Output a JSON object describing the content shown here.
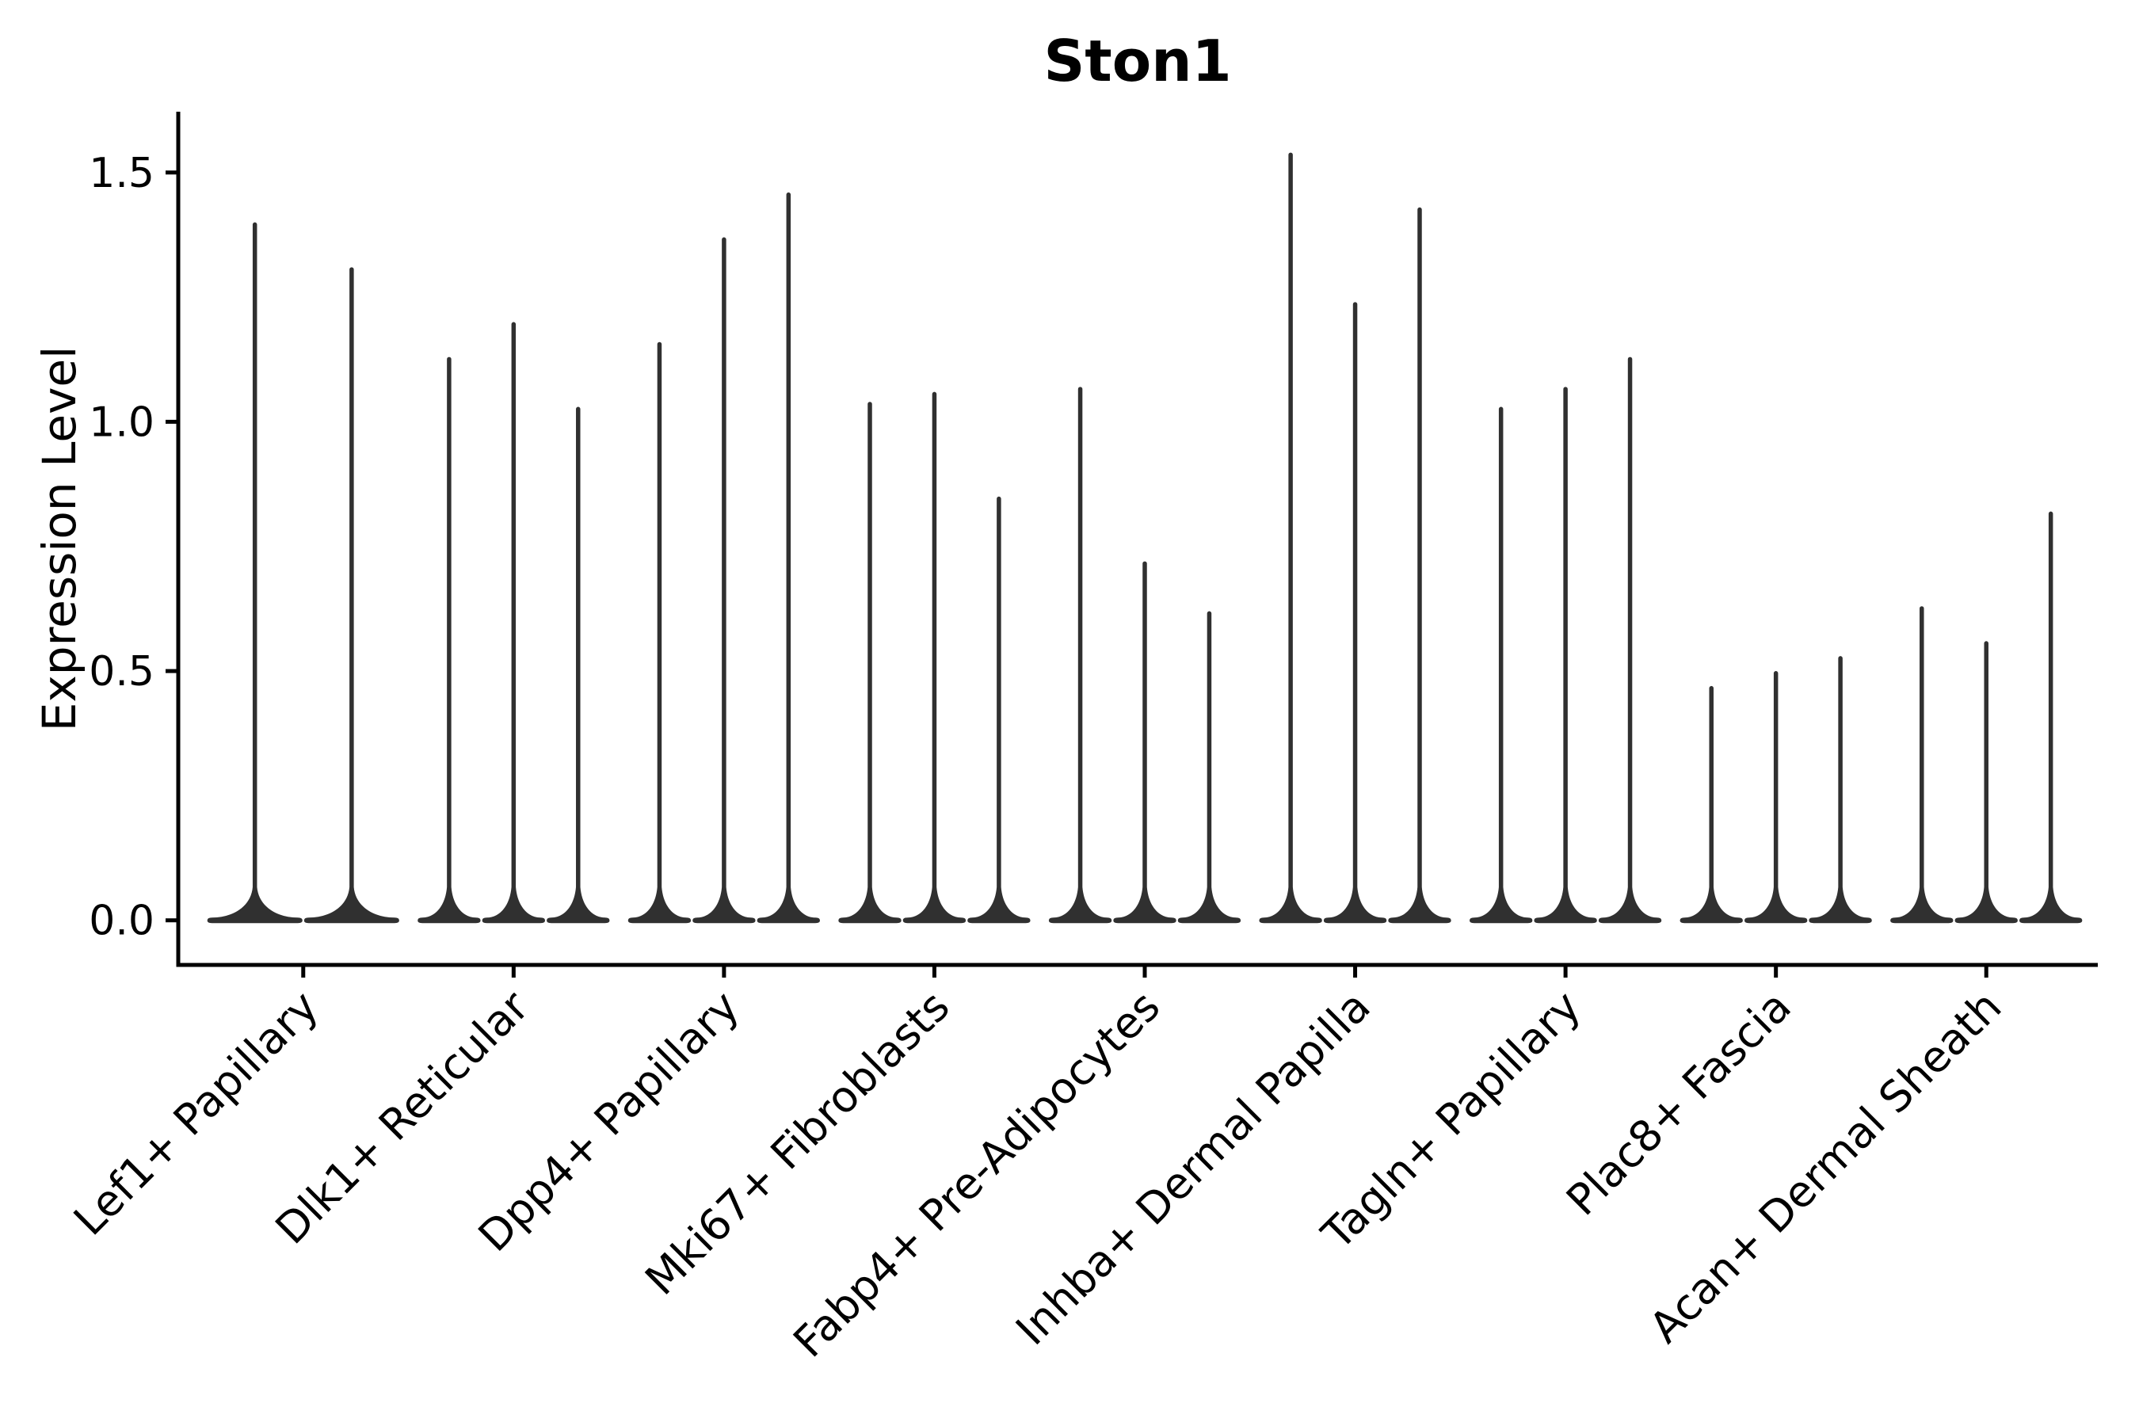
{
  "title": "Ston1",
  "axes": {
    "ylabel": "Expression Level",
    "xlabel": "",
    "ytick_labels": [
      "0.0",
      "0.5",
      "1.0",
      "1.5"
    ]
  },
  "colors": {
    "violin": "#303030",
    "axis": "#000000",
    "text": "#000000",
    "background": "#ffffff"
  },
  "chart_data": {
    "type": "violin",
    "title": "Ston1",
    "ylabel": "Expression Level",
    "xlabel": "",
    "ylim": [
      -0.09,
      1.62
    ],
    "yticks": [
      0.0,
      0.5,
      1.0,
      1.5
    ],
    "grid": false,
    "legend": null,
    "baseline_value": 0.0,
    "shape_note": "needle violins: wide flat base at expression 0, thin spike up to max value",
    "categories": [
      "Lef1+ Papillary",
      "Dlk1+ Reticular",
      "Dpp4+ Papillary",
      "Mki67+ Fibroblasts",
      "Fabp4+ Pre-Adipocytes",
      "Inhba+ Dermal Papilla",
      "Tagln+ Papillary",
      "Plac8+ Fascia",
      "Acan+ Dermal Sheath"
    ],
    "groups": [
      {
        "label": "Lef1+ Papillary",
        "violin_max_values": [
          1.4,
          1.31
        ]
      },
      {
        "label": "Dlk1+ Reticular",
        "violin_max_values": [
          1.13,
          1.2,
          1.03
        ]
      },
      {
        "label": "Dpp4+ Papillary",
        "violin_max_values": [
          1.16,
          1.37,
          1.46
        ]
      },
      {
        "label": "Mki67+ Fibroblasts",
        "violin_max_values": [
          1.04,
          1.06,
          0.85
        ]
      },
      {
        "label": "Fabp4+ Pre-Adipocytes",
        "violin_max_values": [
          1.07,
          0.72,
          0.62
        ]
      },
      {
        "label": "Inhba+ Dermal Papilla",
        "violin_max_values": [
          1.54,
          1.24,
          1.43
        ]
      },
      {
        "label": "Tagln+ Papillary",
        "violin_max_values": [
          1.03,
          1.07,
          1.13
        ]
      },
      {
        "label": "Plac8+ Fascia",
        "violin_max_values": [
          0.47,
          0.5,
          0.53
        ]
      },
      {
        "label": "Acan+ Dermal Sheath",
        "violin_max_values": [
          0.63,
          0.56,
          0.82
        ]
      }
    ]
  }
}
